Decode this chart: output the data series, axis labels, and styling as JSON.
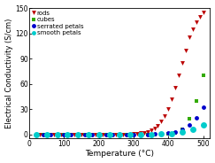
{
  "title": "",
  "xlabel": "Temperature (°C)",
  "ylabel": "Electrical Conductivity (S/cm)",
  "xlim": [
    0,
    520
  ],
  "ylim": [
    -5,
    150
  ],
  "yticks": [
    0,
    30,
    60,
    90,
    120,
    150
  ],
  "xticks": [
    0,
    100,
    200,
    300,
    400,
    500
  ],
  "series": {
    "rods": {
      "color": "#bb0000",
      "marker": "v",
      "markersize": 3.5,
      "x": [
        20,
        30,
        40,
        50,
        60,
        70,
        80,
        90,
        100,
        110,
        120,
        130,
        140,
        150,
        160,
        170,
        180,
        190,
        200,
        210,
        220,
        230,
        240,
        250,
        260,
        270,
        280,
        290,
        300,
        310,
        320,
        330,
        340,
        350,
        360,
        370,
        380,
        390,
        400,
        410,
        420,
        430,
        440,
        450,
        460,
        470,
        480,
        490,
        500
      ],
      "y": [
        0,
        0,
        0,
        0,
        0,
        0,
        0,
        0,
        0,
        0,
        0,
        0,
        0,
        0,
        0,
        0,
        0,
        0,
        0,
        0,
        0,
        0,
        0,
        0,
        0,
        0,
        0,
        0,
        0.5,
        1,
        1.5,
        2,
        3,
        5,
        7,
        10,
        15,
        22,
        30,
        42,
        55,
        70,
        85,
        100,
        115,
        125,
        133,
        140,
        145
      ]
    },
    "cubes": {
      "color": "#33aa00",
      "marker": "s",
      "markersize": 3.5,
      "x": [
        20,
        40,
        60,
        80,
        100,
        120,
        140,
        160,
        180,
        200,
        220,
        240,
        260,
        280,
        300,
        320,
        340,
        360,
        380,
        400,
        420,
        440,
        460,
        480,
        500
      ],
      "y": [
        0,
        0,
        0,
        0,
        0,
        0,
        0,
        0,
        0,
        0,
        0,
        0,
        0,
        0,
        0,
        0,
        0,
        0,
        0,
        0.5,
        2,
        6,
        18,
        40,
        70
      ]
    },
    "serrated_petals": {
      "color": "#0000cc",
      "marker": "o",
      "markersize": 3.5,
      "x": [
        20,
        40,
        60,
        80,
        100,
        120,
        140,
        160,
        180,
        200,
        220,
        240,
        260,
        280,
        300,
        320,
        340,
        360,
        380,
        400,
        420,
        440,
        460,
        480,
        500
      ],
      "y": [
        0,
        0,
        0,
        0,
        0,
        0,
        0,
        0,
        0,
        0,
        0,
        0,
        0,
        0,
        0,
        0,
        0,
        0.5,
        1,
        2,
        3,
        6,
        11,
        20,
        32
      ]
    },
    "smooth_petals": {
      "color": "#00cccc",
      "marker": "o",
      "markersize": 5,
      "x": [
        20,
        50,
        80,
        110,
        140,
        170,
        200,
        230,
        260,
        290,
        320,
        350,
        380,
        410,
        440,
        470,
        500
      ],
      "y": [
        0,
        0,
        0,
        0,
        0,
        0,
        0,
        0,
        0,
        0,
        0,
        0,
        0.5,
        1,
        3,
        6,
        11
      ]
    }
  },
  "legend": {
    "rods": "rods",
    "cubes": "cubes",
    "serrated_petals": "serrated petals",
    "smooth_petals": "smooth petals"
  },
  "legend_colors": {
    "rods": "#bb0000",
    "cubes": "#33aa00",
    "serrated_petals": "#0000cc",
    "smooth_petals": "#00cccc"
  },
  "legend_markers": {
    "rods": "v",
    "cubes": "s",
    "serrated_petals": "o",
    "smooth_petals": "o"
  },
  "background_color": "#ffffff"
}
